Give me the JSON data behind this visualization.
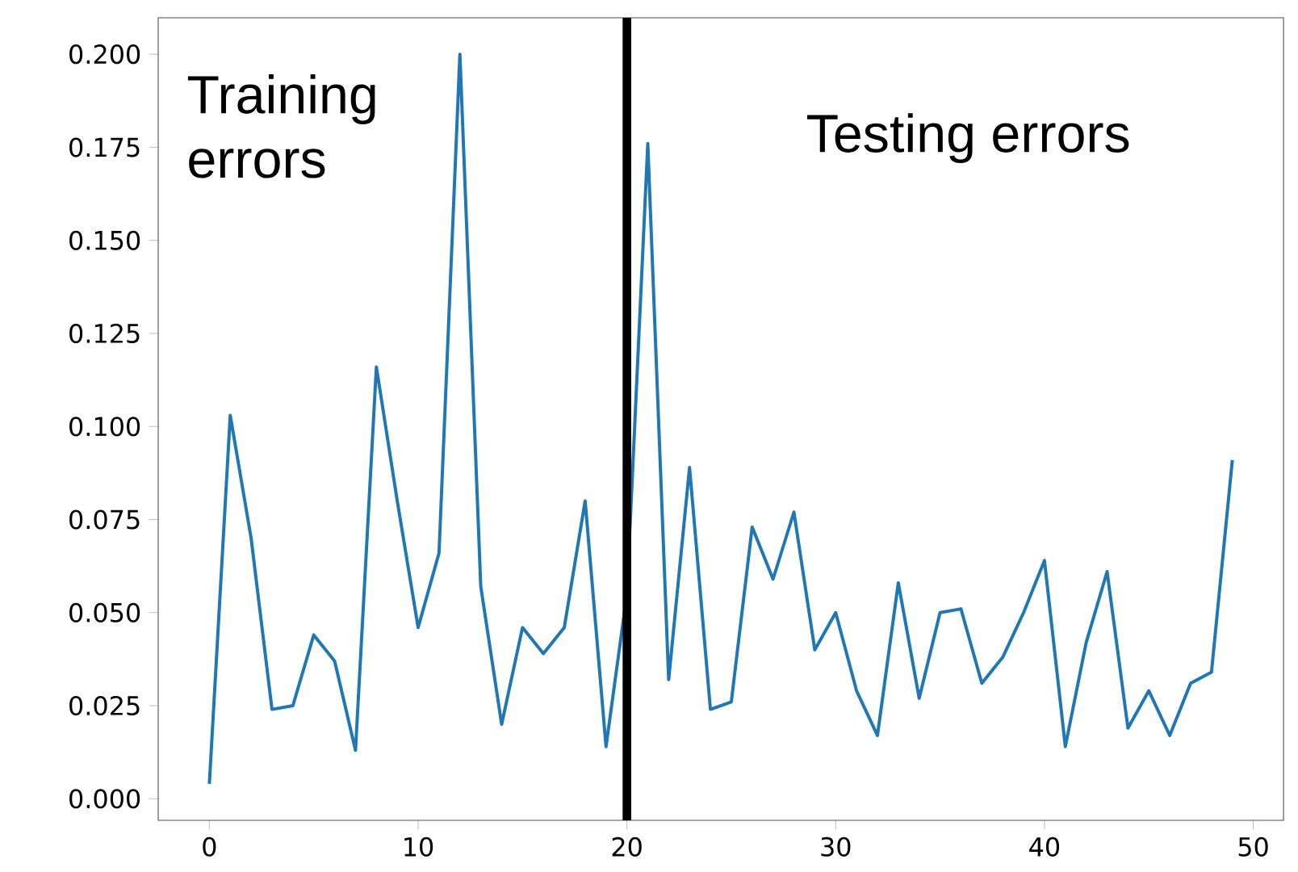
{
  "chart_data": {
    "type": "line",
    "x": [
      0,
      1,
      2,
      3,
      4,
      5,
      6,
      7,
      8,
      9,
      10,
      11,
      12,
      13,
      14,
      15,
      16,
      17,
      18,
      19,
      20,
      21,
      22,
      23,
      24,
      25,
      26,
      27,
      28,
      29,
      30,
      31,
      32,
      33,
      34,
      35,
      36,
      37,
      38,
      39,
      40,
      41,
      42,
      43,
      44,
      45,
      46,
      47,
      48,
      49
    ],
    "series": [
      {
        "color": "#1f77b4",
        "values": [
          0.004,
          0.103,
          0.07,
          0.024,
          0.025,
          0.044,
          0.037,
          0.013,
          0.116,
          0.08,
          0.046,
          0.066,
          0.2,
          0.057,
          0.02,
          0.046,
          0.039,
          0.046,
          0.08,
          0.014,
          0.055,
          0.176,
          0.032,
          0.089,
          0.024,
          0.026,
          0.073,
          0.059,
          0.077,
          0.04,
          0.05,
          0.029,
          0.017,
          0.058,
          0.027,
          0.05,
          0.051,
          0.031,
          0.038,
          0.05,
          0.064,
          0.014,
          0.042,
          0.061,
          0.019,
          0.029,
          0.017,
          0.031,
          0.034,
          0.091
        ]
      }
    ],
    "xlim": [
      -2.45,
      51.45
    ],
    "ylim": [
      -0.0058,
      0.2098
    ],
    "xticks": [
      0,
      10,
      20,
      30,
      40,
      50
    ],
    "yticks": [
      {
        "value": 0,
        "label": "0.000"
      },
      {
        "value": 0.025,
        "label": "0.025"
      },
      {
        "value": 0.05,
        "label": "0.050"
      },
      {
        "value": 0.075,
        "label": "0.075"
      },
      {
        "value": 0.1,
        "label": "0.100"
      },
      {
        "value": 0.125,
        "label": "0.125"
      },
      {
        "value": 0.15,
        "label": "0.150"
      },
      {
        "value": 0.175,
        "label": "0.175"
      },
      {
        "value": 0.2,
        "label": "0.200"
      }
    ],
    "ref_lines": [
      {
        "axis": "x",
        "value": 20,
        "color": "#000000"
      }
    ],
    "annotations": [
      "Training errors",
      "Testing errors"
    ],
    "grid": false
  }
}
